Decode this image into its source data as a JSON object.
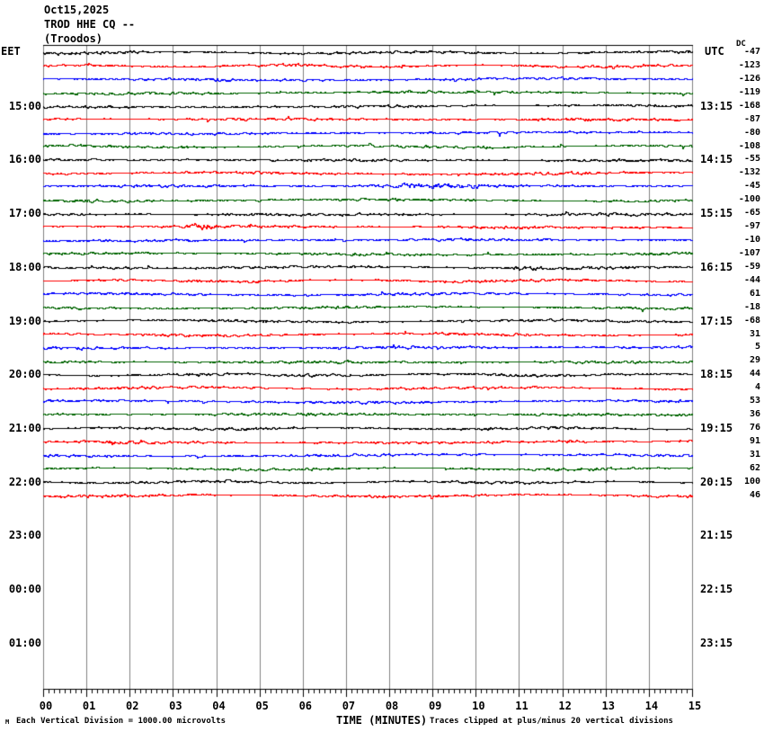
{
  "title": {
    "date": "Oct15,2025",
    "station": "TROD HHE CQ --",
    "location": "(Troodos)"
  },
  "axes": {
    "left_header": "EET",
    "right_header": "UTC",
    "dc_header": "DC",
    "x_title": "TIME (MINUTES)",
    "x_ticks": [
      "00",
      "01",
      "02",
      "03",
      "04",
      "05",
      "06",
      "07",
      "08",
      "09",
      "10",
      "11",
      "12",
      "13",
      "14",
      "15"
    ]
  },
  "footer": {
    "corner_glyph": "M",
    "left_note": "Each Vertical Division = 1000.00 microvolts",
    "right_note": "Traces clipped at plus/minus 20 vertical divisions"
  },
  "chart_data": {
    "type": "line",
    "subtype": "helicorder-seismogram",
    "title": "Oct15,2025 TROD HHE CQ -- (Troodos)",
    "xlabel": "TIME (MINUTES)",
    "x_range_minutes": [
      0,
      15
    ],
    "minutes_per_line": 15,
    "rows_per_hour": 4,
    "grid": true,
    "trace_colors_cycle": [
      "#000000",
      "#ff0000",
      "#0000ff",
      "#006400"
    ],
    "grid_color": "#808080",
    "hour_labels": [
      {
        "row": 4,
        "eet": "15:00",
        "utc": "13:15"
      },
      {
        "row": 8,
        "eet": "16:00",
        "utc": "14:15"
      },
      {
        "row": 12,
        "eet": "17:00",
        "utc": "15:15"
      },
      {
        "row": 16,
        "eet": "18:00",
        "utc": "16:15"
      },
      {
        "row": 20,
        "eet": "19:00",
        "utc": "17:15"
      },
      {
        "row": 24,
        "eet": "20:00",
        "utc": "18:15"
      },
      {
        "row": 28,
        "eet": "21:00",
        "utc": "19:15"
      },
      {
        "row": 32,
        "eet": "22:00",
        "utc": "20:15"
      },
      {
        "row": 36,
        "eet": "23:00",
        "utc": "21:15"
      },
      {
        "row": 40,
        "eet": "00:00",
        "utc": "22:15"
      },
      {
        "row": 44,
        "eet": "01:00",
        "utc": "23:15"
      }
    ],
    "traces": [
      {
        "row": 0,
        "color": "#000000",
        "dc": -47
      },
      {
        "row": 1,
        "color": "#ff0000",
        "dc": -123
      },
      {
        "row": 2,
        "color": "#0000ff",
        "dc": -126
      },
      {
        "row": 3,
        "color": "#006400",
        "dc": -119
      },
      {
        "row": 4,
        "color": "#000000",
        "dc": -168
      },
      {
        "row": 5,
        "color": "#ff0000",
        "dc": -87
      },
      {
        "row": 6,
        "color": "#0000ff",
        "dc": -80
      },
      {
        "row": 7,
        "color": "#006400",
        "dc": -108
      },
      {
        "row": 8,
        "color": "#000000",
        "dc": -55
      },
      {
        "row": 9,
        "color": "#ff0000",
        "dc": -132
      },
      {
        "row": 10,
        "color": "#0000ff",
        "dc": -45
      },
      {
        "row": 11,
        "color": "#006400",
        "dc": -100
      },
      {
        "row": 12,
        "color": "#000000",
        "dc": -65
      },
      {
        "row": 13,
        "color": "#ff0000",
        "dc": -97
      },
      {
        "row": 14,
        "color": "#0000ff",
        "dc": -10
      },
      {
        "row": 15,
        "color": "#006400",
        "dc": -107
      },
      {
        "row": 16,
        "color": "#000000",
        "dc": -59
      },
      {
        "row": 17,
        "color": "#ff0000",
        "dc": -44
      },
      {
        "row": 18,
        "color": "#0000ff",
        "dc": 61
      },
      {
        "row": 19,
        "color": "#006400",
        "dc": -18
      },
      {
        "row": 20,
        "color": "#000000",
        "dc": -68
      },
      {
        "row": 21,
        "color": "#ff0000",
        "dc": 31
      },
      {
        "row": 22,
        "color": "#0000ff",
        "dc": 5
      },
      {
        "row": 23,
        "color": "#006400",
        "dc": 29
      },
      {
        "row": 24,
        "color": "#000000",
        "dc": 44
      },
      {
        "row": 25,
        "color": "#ff0000",
        "dc": 4
      },
      {
        "row": 26,
        "color": "#0000ff",
        "dc": 53
      },
      {
        "row": 27,
        "color": "#006400",
        "dc": 36
      },
      {
        "row": 28,
        "color": "#000000",
        "dc": 76
      },
      {
        "row": 29,
        "color": "#ff0000",
        "dc": 91
      },
      {
        "row": 30,
        "color": "#0000ff",
        "dc": 31
      },
      {
        "row": 31,
        "color": "#006400",
        "dc": 62
      },
      {
        "row": 32,
        "color": "#000000",
        "dc": 100
      },
      {
        "row": 33,
        "color": "#ff0000",
        "dc": 46
      }
    ],
    "notes": {
      "vertical_division": "Each Vertical Division = 1000.00 microvolts",
      "clipping": "Traces clipped at plus/minus 20 vertical divisions"
    }
  }
}
